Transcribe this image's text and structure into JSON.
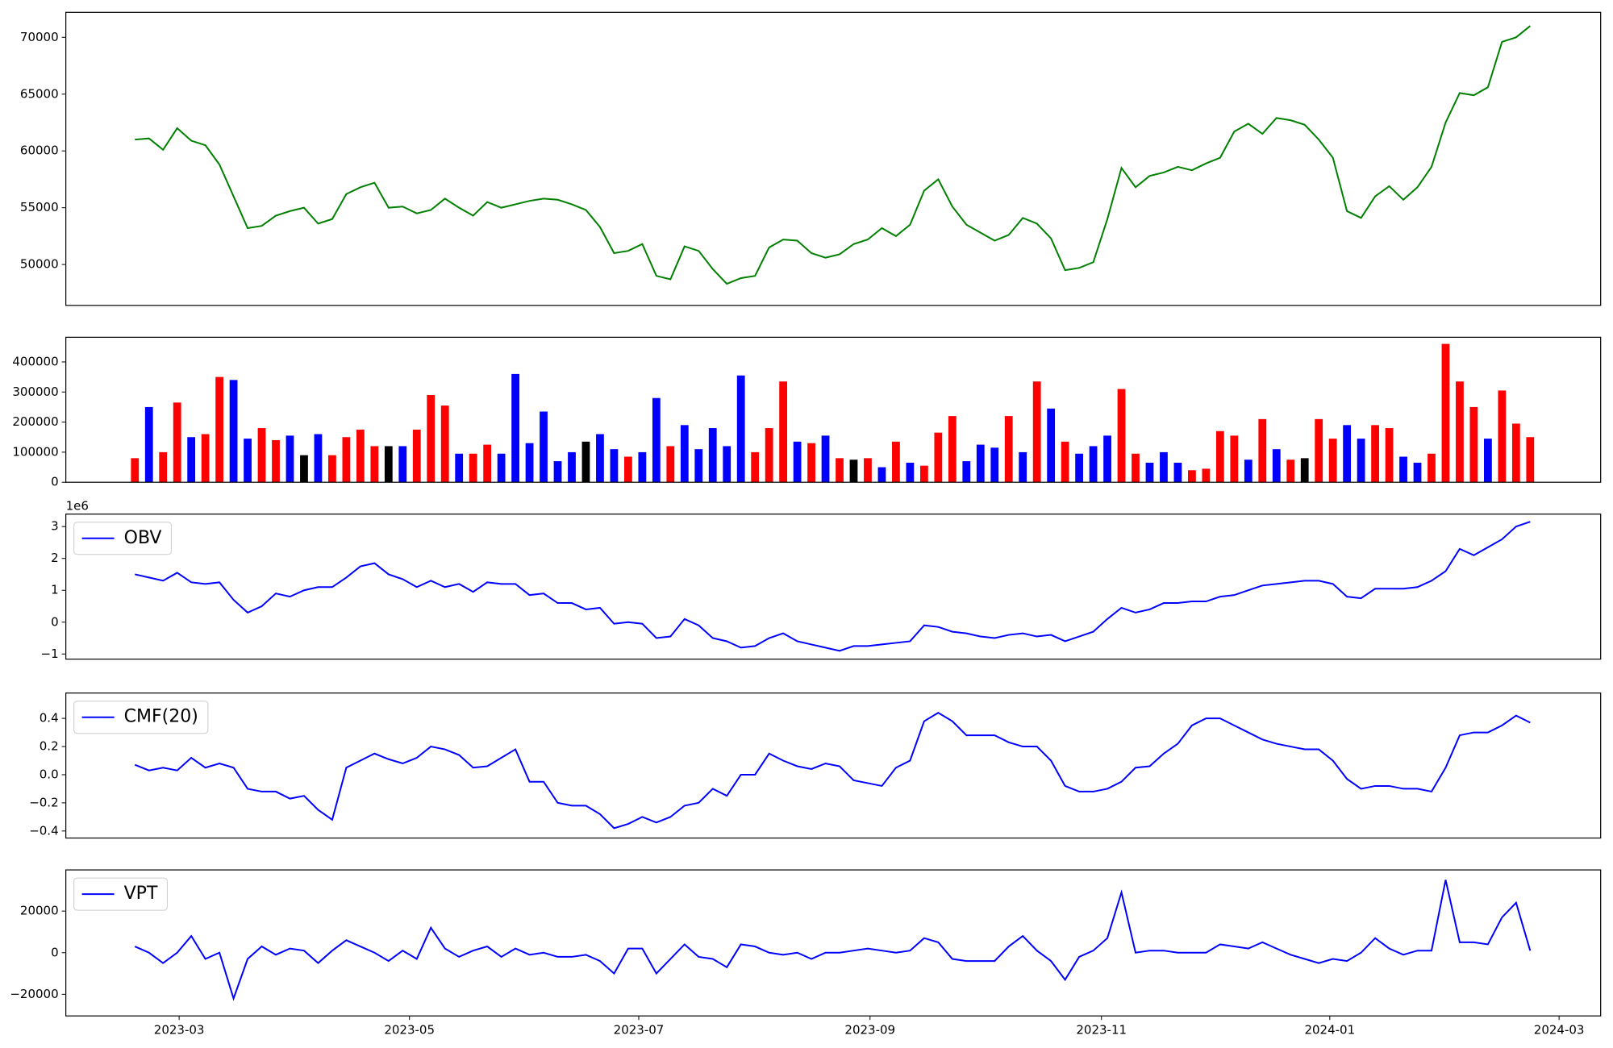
{
  "chart_data": [
    {
      "type": "line",
      "color": "green",
      "ylim": [
        46400,
        72200
      ],
      "yticks": [
        50000,
        55000,
        60000,
        65000,
        70000
      ],
      "xlim": [
        -4.9,
        104.0
      ],
      "values": [
        61000,
        61100,
        60100,
        62000,
        60900,
        60500,
        58800,
        56000,
        53200,
        53400,
        54300,
        54700,
        55000,
        53600,
        54000,
        56200,
        56800,
        57200,
        55000,
        55100,
        54500,
        54800,
        55800,
        55000,
        54300,
        55500,
        55000,
        55300,
        55600,
        55800,
        55700,
        55300,
        54800,
        53300,
        51000,
        51200,
        51800,
        49000,
        48700,
        51600,
        51200,
        49600,
        48300,
        48800,
        49000,
        51500,
        52200,
        52100,
        51000,
        50600,
        50900,
        51800,
        52200,
        53200,
        52500,
        53500,
        56500,
        57500,
        55100,
        53500,
        52800,
        52100,
        52600,
        54100,
        53600,
        52300,
        49500,
        49700,
        50200,
        54000,
        58500,
        56800,
        57800,
        58100,
        58600,
        58300,
        58900,
        59400,
        61700,
        62400,
        61500,
        62900,
        62700,
        62300,
        61000,
        59400,
        54700,
        54100,
        56000,
        56900,
        55700,
        56800,
        58600,
        62500,
        65100,
        64900,
        65600,
        69600,
        70000,
        71000
      ]
    },
    {
      "type": "bar",
      "ylim": [
        0,
        482000
      ],
      "yticks": [
        0,
        100000,
        200000,
        300000,
        400000
      ],
      "xlim": [
        -4.9,
        104.0
      ],
      "values": [
        80000,
        250000,
        100000,
        265000,
        150000,
        160000,
        350000,
        340000,
        145000,
        180000,
        140000,
        155000,
        90000,
        160000,
        90000,
        150000,
        175000,
        120000,
        120000,
        120000,
        175000,
        290000,
        255000,
        95000,
        95000,
        125000,
        95000,
        360000,
        130000,
        235000,
        70000,
        100000,
        135000,
        160000,
        110000,
        85000,
        100000,
        280000,
        120000,
        190000,
        110000,
        180000,
        120000,
        355000,
        100000,
        180000,
        335000,
        135000,
        130000,
        155000,
        80000,
        75000,
        80000,
        50000,
        135000,
        65000,
        55000,
        165000,
        220000,
        70000,
        125000,
        115000,
        220000,
        100000,
        335000,
        245000,
        135000,
        95000,
        120000,
        155000,
        310000,
        95000,
        65000,
        100000,
        65000,
        40000,
        45000,
        170000,
        155000,
        75000,
        210000,
        110000,
        75000,
        80000,
        210000,
        145000,
        190000,
        145000,
        190000,
        180000,
        85000,
        65000,
        95000,
        460000,
        335000,
        250000,
        145000,
        305000,
        195000,
        150000
      ],
      "colors": [
        "red",
        "blue",
        "red",
        "red",
        "blue",
        "red",
        "red",
        "blue",
        "blue",
        "red",
        "red",
        "blue",
        "black",
        "blue",
        "red",
        "red",
        "red",
        "red",
        "black",
        "blue",
        "red",
        "red",
        "red",
        "blue",
        "red",
        "red",
        "blue",
        "blue",
        "blue",
        "blue",
        "blue",
        "blue",
        "black",
        "blue",
        "blue",
        "red",
        "blue",
        "blue",
        "red",
        "blue",
        "blue",
        "blue",
        "blue",
        "blue",
        "red",
        "red",
        "red",
        "blue",
        "red",
        "blue",
        "red",
        "black",
        "red",
        "blue",
        "red",
        "blue",
        "red",
        "red",
        "red",
        "blue",
        "blue",
        "blue",
        "red",
        "blue",
        "red",
        "blue",
        "red",
        "blue",
        "blue",
        "blue",
        "red",
        "red",
        "blue",
        "blue",
        "blue",
        "red",
        "red",
        "red",
        "red",
        "blue",
        "red",
        "blue",
        "red",
        "black",
        "red",
        "red",
        "blue",
        "blue",
        "red",
        "red",
        "blue",
        "blue",
        "red",
        "red",
        "red",
        "red",
        "blue",
        "red",
        "red",
        "red"
      ]
    },
    {
      "type": "line",
      "ylim": [
        -1.16,
        3.39
      ],
      "y_offset_label": "1e6",
      "yticks": [
        {
          "value": -1,
          "label": "−1"
        },
        0,
        1,
        2,
        3
      ],
      "xlim": [
        -4.9,
        104.0
      ],
      "legend": "upper left",
      "series": [
        {
          "name": "OBV",
          "color": "blue",
          "values": [
            1.5,
            1.4,
            1.3,
            1.55,
            1.25,
            1.2,
            1.25,
            0.7,
            0.3,
            0.5,
            0.9,
            0.8,
            1.0,
            1.1,
            1.1,
            1.4,
            1.75,
            1.85,
            1.5,
            1.35,
            1.1,
            1.3,
            1.1,
            1.2,
            0.95,
            1.25,
            1.2,
            1.2,
            0.85,
            0.9,
            0.6,
            0.6,
            0.4,
            0.45,
            -0.05,
            0.0,
            -0.05,
            -0.5,
            -0.45,
            0.1,
            -0.1,
            -0.5,
            -0.6,
            -0.8,
            -0.75,
            -0.5,
            -0.35,
            -0.6,
            -0.7,
            -0.8,
            -0.9,
            -0.75,
            -0.75,
            -0.7,
            -0.65,
            -0.6,
            -0.1,
            -0.15,
            -0.3,
            -0.35,
            -0.45,
            -0.5,
            -0.4,
            -0.35,
            -0.45,
            -0.4,
            -0.6,
            -0.45,
            -0.3,
            0.1,
            0.45,
            0.3,
            0.4,
            0.6,
            0.6,
            0.65,
            0.65,
            0.8,
            0.85,
            1.0,
            1.15,
            1.2,
            1.25,
            1.3,
            1.3,
            1.2,
            0.8,
            0.75,
            1.05,
            1.05,
            1.05,
            1.1,
            1.3,
            1.6,
            2.3,
            2.1,
            2.35,
            2.6,
            3.0,
            3.15
          ]
        }
      ]
    },
    {
      "type": "line",
      "ylim": [
        -0.45,
        0.58
      ],
      "yticks": [
        {
          "value": -0.4,
          "label": "−0.4"
        },
        {
          "value": -0.2,
          "label": "−0.2"
        },
        {
          "value": 0,
          "label": "0.0"
        },
        0.2,
        0.4
      ],
      "xlim": [
        -4.9,
        104.0
      ],
      "legend": "upper left",
      "series": [
        {
          "name": "CMF(20)",
          "color": "blue",
          "values": [
            0.07,
            0.03,
            0.05,
            0.03,
            0.12,
            0.05,
            0.08,
            0.05,
            -0.1,
            -0.12,
            -0.12,
            -0.17,
            -0.15,
            -0.25,
            -0.32,
            0.05,
            0.1,
            0.15,
            0.11,
            0.08,
            0.12,
            0.2,
            0.18,
            0.14,
            0.05,
            0.06,
            0.12,
            0.18,
            -0.05,
            -0.05,
            -0.2,
            -0.22,
            -0.22,
            -0.28,
            -0.38,
            -0.35,
            -0.3,
            -0.34,
            -0.3,
            -0.22,
            -0.2,
            -0.1,
            -0.15,
            0.0,
            0.0,
            0.15,
            0.1,
            0.06,
            0.04,
            0.08,
            0.06,
            -0.04,
            -0.06,
            -0.08,
            0.05,
            0.1,
            0.38,
            0.44,
            0.38,
            0.28,
            0.28,
            0.28,
            0.23,
            0.2,
            0.2,
            0.1,
            -0.08,
            -0.12,
            -0.12,
            -0.1,
            -0.05,
            0.05,
            0.06,
            0.15,
            0.22,
            0.35,
            0.4,
            0.4,
            0.35,
            0.3,
            0.25,
            0.22,
            0.2,
            0.18,
            0.18,
            0.1,
            -0.03,
            -0.1,
            -0.08,
            -0.08,
            -0.1,
            -0.1,
            -0.12,
            0.05,
            0.28,
            0.3,
            0.3,
            0.35,
            0.42,
            0.37
          ]
        }
      ]
    },
    {
      "type": "line",
      "ylim": [
        -30400,
        39800
      ],
      "yticks": [
        {
          "value": -20000,
          "label": "−20000"
        },
        0,
        20000
      ],
      "xlim": [
        -4.9,
        104.0
      ],
      "legend": "upper left",
      "xticks": [
        {
          "value": 3.14,
          "label": "2023-03"
        },
        {
          "value": 19.48,
          "label": "2023-05"
        },
        {
          "value": 35.75,
          "label": "2023-07"
        },
        {
          "value": 52.16,
          "label": "2023-09"
        },
        {
          "value": 68.58,
          "label": "2023-11"
        },
        {
          "value": 84.78,
          "label": "2024-01"
        },
        {
          "value": 101.05,
          "label": "2024-03"
        }
      ],
      "series": [
        {
          "name": "VPT",
          "color": "blue",
          "values": [
            3000,
            0,
            -5000,
            0,
            8000,
            -3000,
            0,
            -22000,
            -3000,
            3000,
            -1000,
            2000,
            1000,
            -5000,
            1000,
            6000,
            3000,
            0,
            -4000,
            1000,
            -3000,
            12000,
            2000,
            -2000,
            1000,
            3000,
            -2000,
            2000,
            -1000,
            0,
            -2000,
            -2000,
            -1000,
            -4000,
            -10000,
            2000,
            2000,
            -10000,
            -3000,
            4000,
            -2000,
            -3000,
            -7000,
            4000,
            3000,
            0,
            -1000,
            0,
            -3000,
            0,
            0,
            1000,
            2000,
            1000,
            0,
            1000,
            7000,
            5000,
            -3000,
            -4000,
            -4000,
            -4000,
            3000,
            8000,
            1000,
            -4000,
            -13000,
            -2000,
            1000,
            7000,
            29000,
            0,
            1000,
            1000,
            0,
            0,
            0,
            4000,
            3000,
            2000,
            5000,
            2000,
            -1000,
            -3000,
            -5000,
            -3000,
            -4000,
            0,
            7000,
            2000,
            -1000,
            1000,
            1000,
            35000,
            5000,
            5000,
            4000,
            17000,
            24000,
            1000
          ]
        }
      ]
    }
  ]
}
